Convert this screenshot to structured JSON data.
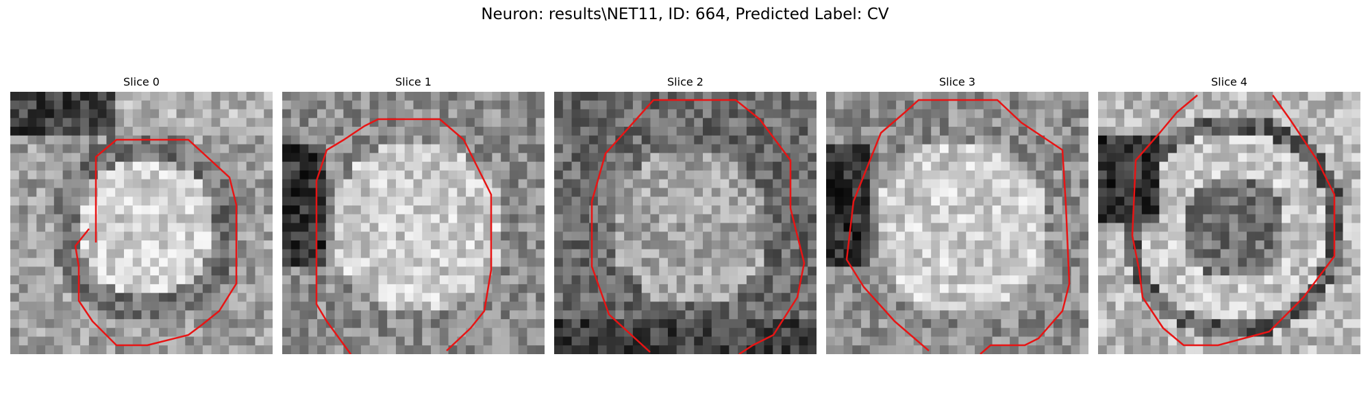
{
  "figure": {
    "title": "Neuron: results\\NET11, ID: 664, Predicted Label: CV"
  },
  "panels": [
    {
      "title": "Slice 0",
      "kind": "blob-small",
      "seed": 11
    },
    {
      "title": "Slice 1",
      "kind": "blob-left-dark",
      "seed": 23
    },
    {
      "title": "Slice 2",
      "kind": "gray-mid",
      "seed": 37
    },
    {
      "title": "Slice 3",
      "kind": "blob-left-dark",
      "seed": 51
    },
    {
      "title": "Slice 4",
      "kind": "ring",
      "seed": 67
    }
  ],
  "colors": {
    "contour": "#e81414"
  }
}
